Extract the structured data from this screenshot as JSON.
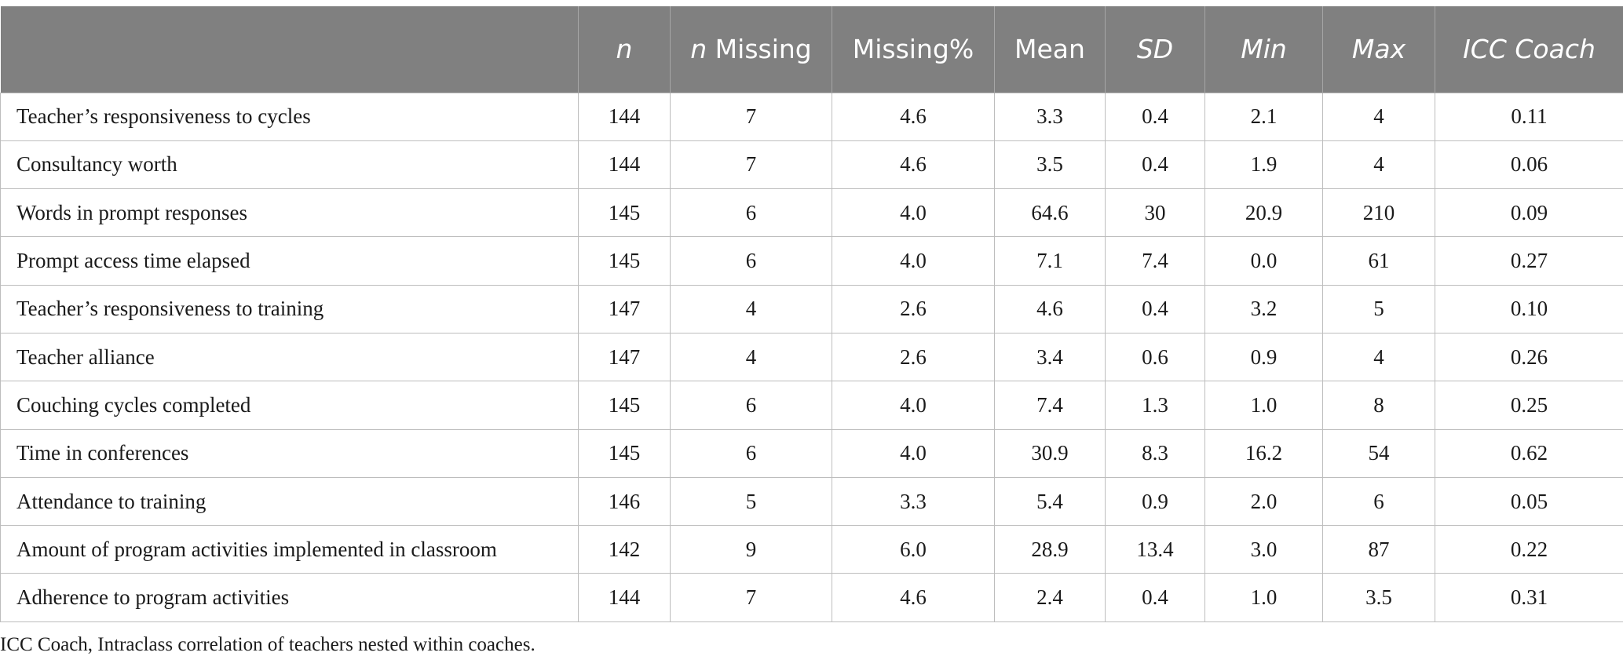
{
  "table": {
    "headers": [
      "",
      "n",
      "n Missing",
      "Missing%",
      "Mean",
      "SD",
      "Min",
      "Max",
      "ICC Coach"
    ],
    "header_parts": {
      "n": "n",
      "n_missing_italic": "n",
      "n_missing_rest": " Missing",
      "missing_pct": "Missing%",
      "mean": "Mean",
      "sd": "SD",
      "min": "Min",
      "max": "Max",
      "icc": "ICC Coach"
    },
    "rows": [
      [
        "Teacher’s responsiveness to cycles",
        "144",
        "7",
        "4.6",
        "3.3",
        "0.4",
        "2.1",
        "4",
        "0.11"
      ],
      [
        "Consultancy worth",
        "144",
        "7",
        "4.6",
        "3.5",
        "0.4",
        "1.9",
        "4",
        "0.06"
      ],
      [
        "Words in prompt responses",
        "145",
        "6",
        "4.0",
        "64.6",
        "30",
        "20.9",
        "210",
        "0.09"
      ],
      [
        "Prompt access time elapsed",
        "145",
        "6",
        "4.0",
        "7.1",
        "7.4",
        "0.0",
        "61",
        "0.27"
      ],
      [
        "Teacher’s responsiveness to training",
        "147",
        "4",
        "2.6",
        "4.6",
        "0.4",
        "3.2",
        "5",
        "0.10"
      ],
      [
        "Teacher alliance",
        "147",
        "4",
        "2.6",
        "3.4",
        "0.6",
        "0.9",
        "4",
        "0.26"
      ],
      [
        "Couching cycles completed",
        "145",
        "6",
        "4.0",
        "7.4",
        "1.3",
        "1.0",
        "8",
        "0.25"
      ],
      [
        "Time in conferences",
        "145",
        "6",
        "4.0",
        "30.9",
        "8.3",
        "16.2",
        "54",
        "0.62"
      ],
      [
        "Attendance to training",
        "146",
        "5",
        "3.3",
        "5.4",
        "0.9",
        "2.0",
        "6",
        "0.05"
      ],
      [
        "Amount of program activities implemented in classroom",
        "142",
        "9",
        "6.0",
        "28.9",
        "13.4",
        "3.0",
        "87",
        "0.22"
      ],
      [
        "Adherence to program activities",
        "144",
        "7",
        "4.6",
        "2.4",
        "0.4",
        "1.0",
        "3.5",
        "0.31"
      ]
    ]
  },
  "footnote": "ICC Coach, Intraclass correlation of teachers nested within coaches.",
  "colors": {
    "header_bg": "#808080",
    "header_text": "#ffffff",
    "grid": "#bdbdbd"
  }
}
